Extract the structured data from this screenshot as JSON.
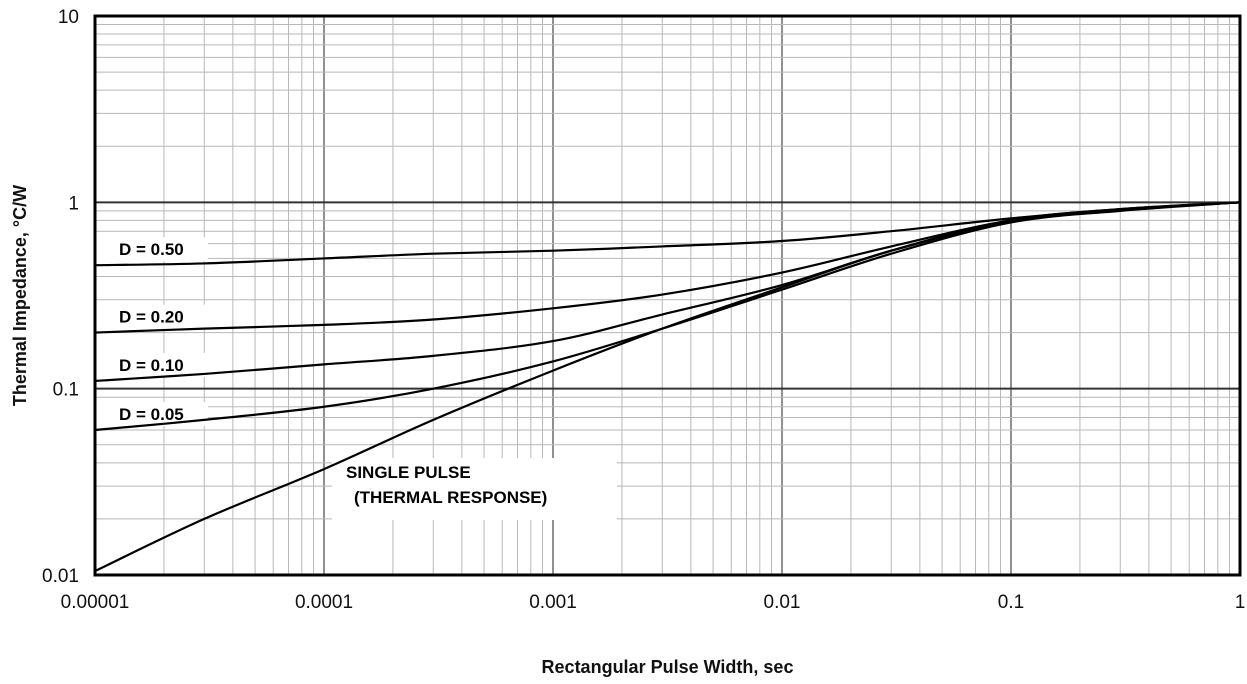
{
  "chart_data": {
    "type": "line",
    "title": "",
    "xlabel": "Rectangular Pulse Width, sec",
    "ylabel": "Thermal Impedance, °C/W",
    "xscale": "log",
    "yscale": "log",
    "xlim": [
      1e-05,
      1
    ],
    "ylim": [
      0.01,
      10
    ],
    "grid": true,
    "x_tick_labels": [
      "0.00001",
      "0.0001",
      "0.001",
      "0.01",
      "0.1",
      "1"
    ],
    "y_tick_labels": [
      "0.01",
      "0.1",
      "1",
      "10"
    ],
    "series": [
      {
        "name": "D = 0.50",
        "x": [
          1e-05,
          3e-05,
          0.0001,
          0.0003,
          0.001,
          0.003,
          0.01,
          0.03,
          0.1,
          0.3,
          1
        ],
        "y": [
          0.46,
          0.47,
          0.5,
          0.53,
          0.55,
          0.58,
          0.62,
          0.7,
          0.82,
          0.92,
          1.0
        ]
      },
      {
        "name": "D = 0.20",
        "x": [
          1e-05,
          3e-05,
          0.0001,
          0.0003,
          0.001,
          0.003,
          0.01,
          0.03,
          0.1,
          0.3,
          1
        ],
        "y": [
          0.2,
          0.21,
          0.22,
          0.235,
          0.27,
          0.32,
          0.42,
          0.58,
          0.8,
          0.91,
          1.0
        ]
      },
      {
        "name": "D = 0.10",
        "x": [
          1e-05,
          3e-05,
          0.0001,
          0.0003,
          0.001,
          0.003,
          0.01,
          0.03,
          0.1,
          0.3,
          1
        ],
        "y": [
          0.11,
          0.12,
          0.135,
          0.15,
          0.18,
          0.25,
          0.36,
          0.55,
          0.79,
          0.91,
          1.0
        ]
      },
      {
        "name": "D = 0.05",
        "x": [
          1e-05,
          3e-05,
          0.0001,
          0.0003,
          0.001,
          0.003,
          0.01,
          0.03,
          0.1,
          0.3,
          1
        ],
        "y": [
          0.06,
          0.068,
          0.08,
          0.1,
          0.14,
          0.21,
          0.34,
          0.53,
          0.78,
          0.9,
          1.0
        ]
      },
      {
        "name": "SINGLE PULSE (THERMAL RESPONSE)",
        "x": [
          1e-05,
          3e-05,
          0.0001,
          0.0003,
          0.001,
          0.003,
          0.01,
          0.03,
          0.1,
          0.3,
          1
        ],
        "y": [
          0.0105,
          0.02,
          0.037,
          0.068,
          0.125,
          0.21,
          0.35,
          0.55,
          0.8,
          0.92,
          1.0
        ]
      }
    ],
    "annotations": [
      {
        "series_index": 0,
        "lines": [
          "D = 0.50"
        ]
      },
      {
        "series_index": 1,
        "lines": [
          "D = 0.20"
        ]
      },
      {
        "series_index": 2,
        "lines": [
          "D = 0.10"
        ]
      },
      {
        "series_index": 3,
        "lines": [
          "D = 0.05"
        ]
      },
      {
        "series_index": 4,
        "lines": [
          "SINGLE PULSE",
          "(THERMAL RESPONSE)"
        ]
      }
    ]
  }
}
